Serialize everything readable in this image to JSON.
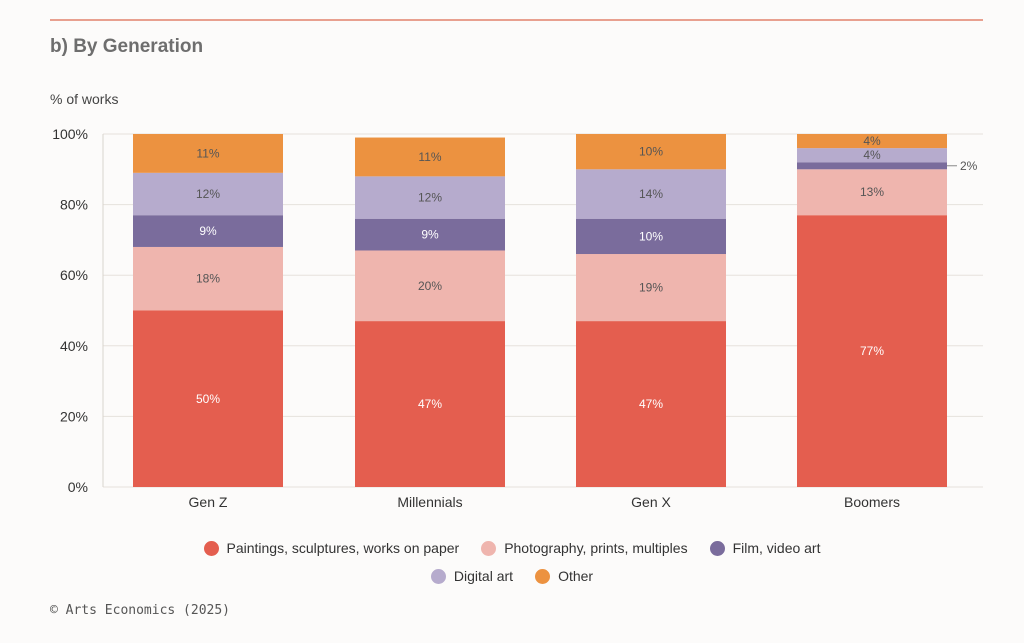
{
  "section_title": "b) By Generation",
  "source": "© Arts Economics (2025)",
  "colors": {
    "paintings": "#e45e4f",
    "photography": "#efb5ae",
    "film": "#7a6c9c",
    "digital": "#b6abcd",
    "other": "#ec9240",
    "grid": "#e6e2dc",
    "text": "#333333"
  },
  "chart_data": {
    "type": "bar",
    "stacked": true,
    "title": "b) By Generation",
    "ylabel": "% of works",
    "xlabel": "",
    "ylim": [
      0,
      100
    ],
    "yticks": [
      0,
      20,
      40,
      60,
      80,
      100
    ],
    "ytick_labels": [
      "0%",
      "20%",
      "40%",
      "60%",
      "80%",
      "100%"
    ],
    "categories": [
      "Gen Z",
      "Millennials",
      "Gen X",
      "Boomers"
    ],
    "series": [
      {
        "key": "paintings",
        "name": "Paintings, sculptures, works on paper",
        "values": [
          50,
          47,
          47,
          77
        ],
        "labels": [
          "50%",
          "47%",
          "47%",
          "77%"
        ]
      },
      {
        "key": "photography",
        "name": "Photography, prints, multiples",
        "values": [
          18,
          20,
          19,
          13
        ],
        "labels": [
          "18%",
          "20%",
          "19%",
          "13%"
        ]
      },
      {
        "key": "film",
        "name": "Film, video art",
        "values": [
          9,
          9,
          10,
          2
        ],
        "labels": [
          "9%",
          "9%",
          "10%",
          "2%"
        ]
      },
      {
        "key": "digital",
        "name": "Digital art",
        "values": [
          12,
          12,
          14,
          4
        ],
        "labels": [
          "12%",
          "12%",
          "14%",
          "4%"
        ]
      },
      {
        "key": "other",
        "name": "Other",
        "values": [
          11,
          11,
          10,
          4
        ],
        "labels": [
          "11%",
          "11%",
          "10%",
          "4%"
        ]
      }
    ],
    "legend": "bottom"
  }
}
